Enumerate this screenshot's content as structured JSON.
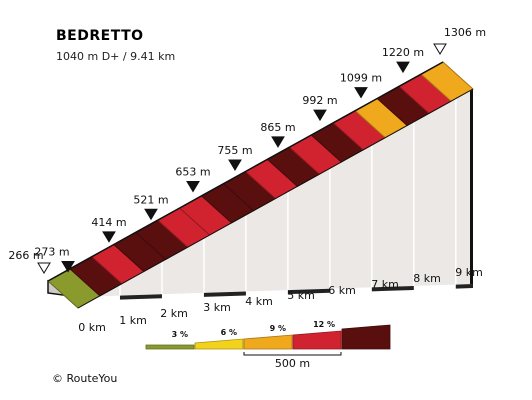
{
  "header": {
    "title": "BEDRETTO",
    "subtitle": "1040 m D+ / 9.41 km"
  },
  "footer": {
    "credit": "©  RouteYou"
  },
  "colors": {
    "grade_0_3": "#8a9a2c",
    "grade_3_6": "#f2d21a",
    "grade_6_9": "#f0a81c",
    "grade_9_12": "#d1232f",
    "grade_12_plus": "#5a0f0f",
    "wall": "#ece8e6",
    "distance_bar": "#222222"
  },
  "chart_data": {
    "type": "area",
    "x_unit": "km",
    "y_unit": "m",
    "distance_km": [
      0,
      1,
      2,
      3,
      4,
      5,
      6,
      7,
      8,
      9
    ],
    "km_labels": [
      "0 km",
      "1 km",
      "2 km",
      "3 km",
      "4 km",
      "5 km",
      "6 km",
      "7 km",
      "8 km",
      "9 km"
    ],
    "elevation_labels": [
      "266 m",
      "273 m",
      "414 m",
      "521 m",
      "653 m",
      "755 m",
      "865 m",
      "992 m",
      "1099 m",
      "1220 m",
      "1306 m"
    ],
    "elevation_m": [
      266,
      273,
      414,
      521,
      653,
      755,
      865,
      992,
      1099,
      1220,
      1306
    ],
    "segment_length_m": 500,
    "segments": [
      {
        "grade_class": "0-3"
      },
      {
        "grade_class": "12+"
      },
      {
        "grade_class": "9-12"
      },
      {
        "grade_class": "12+"
      },
      {
        "grade_class": "12+"
      },
      {
        "grade_class": "9-12"
      },
      {
        "grade_class": "9-12"
      },
      {
        "grade_class": "12+"
      },
      {
        "grade_class": "12+"
      },
      {
        "grade_class": "9-12"
      },
      {
        "grade_class": "12+"
      },
      {
        "grade_class": "9-12"
      },
      {
        "grade_class": "12+"
      },
      {
        "grade_class": "9-12"
      },
      {
        "grade_class": "6-9"
      },
      {
        "grade_class": "12+"
      },
      {
        "grade_class": "9-12"
      },
      {
        "grade_class": "6-9"
      }
    ],
    "legend": {
      "items": [
        {
          "grade_class": "0-3",
          "label": "3 %"
        },
        {
          "grade_class": "3-6",
          "label": "6 %"
        },
        {
          "grade_class": "6-9",
          "label": "9 %"
        },
        {
          "grade_class": "9-12",
          "label": "12 %"
        },
        {
          "grade_class": "12+",
          "label": ""
        }
      ],
      "scale_label": "500 m"
    }
  }
}
